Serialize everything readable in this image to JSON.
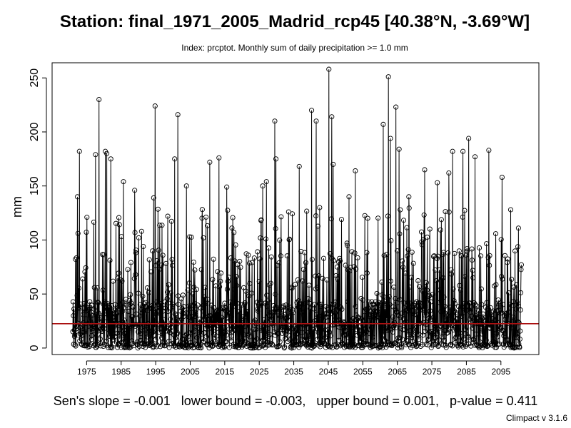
{
  "chart_data": {
    "type": "line",
    "title": "Station: final_1971_2005_Madrid_rcp45 [40.38°N, -3.69°W]",
    "subtitle": "Index: prcptot. Monthly sum of daily precipitation >= 1.0 mm",
    "ylabel": "mm",
    "xlabel": "",
    "x_range": [
      1971,
      2101
    ],
    "xlim": [
      1965,
      2106
    ],
    "ylim": [
      -6,
      264
    ],
    "x_ticks": [
      1975,
      1985,
      1995,
      2005,
      2015,
      2025,
      2035,
      2045,
      2055,
      2065,
      2075,
      2085,
      2095
    ],
    "x_tick_labels": [
      "1975",
      "1985",
      "1995",
      "2005",
      "2015",
      "2025",
      "2035",
      "2045",
      "2055",
      "2065",
      "2075",
      "2085",
      "2095"
    ],
    "y_ticks": [
      0,
      50,
      100,
      150,
      200,
      250
    ],
    "y_tick_labels": [
      "0",
      "50",
      "100",
      "150",
      "200",
      "250"
    ],
    "trend_line_value": 22.5,
    "trend_line_color": "#aa1111",
    "marker": "open-circle",
    "peaks": [
      {
        "year": 1972.3,
        "value": 140
      },
      {
        "year": 1972.9,
        "value": 182
      },
      {
        "year": 1975.1,
        "value": 121
      },
      {
        "year": 1977.6,
        "value": 179
      },
      {
        "year": 1978.6,
        "value": 230
      },
      {
        "year": 1980.4,
        "value": 182
      },
      {
        "year": 1980.8,
        "value": 180
      },
      {
        "year": 1982.0,
        "value": 175
      },
      {
        "year": 1985.7,
        "value": 154
      },
      {
        "year": 1988.9,
        "value": 146
      },
      {
        "year": 1991.4,
        "value": 94
      },
      {
        "year": 1994.4,
        "value": 139
      },
      {
        "year": 1994.8,
        "value": 224
      },
      {
        "year": 1998.5,
        "value": 122
      },
      {
        "year": 2000.5,
        "value": 175
      },
      {
        "year": 2001.4,
        "value": 216
      },
      {
        "year": 2003.9,
        "value": 150
      },
      {
        "year": 2008.8,
        "value": 102
      },
      {
        "year": 2010.7,
        "value": 172
      },
      {
        "year": 2013.3,
        "value": 176
      },
      {
        "year": 2015.6,
        "value": 149
      },
      {
        "year": 2017.7,
        "value": 107
      },
      {
        "year": 2026.0,
        "value": 150
      },
      {
        "year": 2027.1,
        "value": 154
      },
      {
        "year": 2029.5,
        "value": 210
      },
      {
        "year": 2029.8,
        "value": 175
      },
      {
        "year": 2033.5,
        "value": 126
      },
      {
        "year": 2036.6,
        "value": 168
      },
      {
        "year": 2040.2,
        "value": 220
      },
      {
        "year": 2041.5,
        "value": 210
      },
      {
        "year": 2042.5,
        "value": 130
      },
      {
        "year": 2045.2,
        "value": 258
      },
      {
        "year": 2046.0,
        "value": 214
      },
      {
        "year": 2046.4,
        "value": 170
      },
      {
        "year": 2051.0,
        "value": 140
      },
      {
        "year": 2052.8,
        "value": 164
      },
      {
        "year": 2060.9,
        "value": 207
      },
      {
        "year": 2062.4,
        "value": 251
      },
      {
        "year": 2063.0,
        "value": 194
      },
      {
        "year": 2064.6,
        "value": 223
      },
      {
        "year": 2065.5,
        "value": 184
      },
      {
        "year": 2068.3,
        "value": 140
      },
      {
        "year": 2072.9,
        "value": 165
      },
      {
        "year": 2076.6,
        "value": 153
      },
      {
        "year": 2079.9,
        "value": 162
      },
      {
        "year": 2081.0,
        "value": 182
      },
      {
        "year": 2084.0,
        "value": 182
      },
      {
        "year": 2085.7,
        "value": 194
      },
      {
        "year": 2087.5,
        "value": 177
      },
      {
        "year": 2091.5,
        "value": 183
      },
      {
        "year": 2095.3,
        "value": 158
      },
      {
        "year": 2097.8,
        "value": 128
      },
      {
        "year": 2100.1,
        "value": 111
      }
    ],
    "stats": {
      "sens_slope": "-0.001",
      "lower_bound": "-0.003",
      "upper_bound": "0.001",
      "p_value": "0.411"
    }
  },
  "stats_text": "Sen's slope = -0.001   lower bound = -0.003,   upper bound = 0.001,   p-value = 0.411",
  "footer": "Climpact v 3.1.6"
}
